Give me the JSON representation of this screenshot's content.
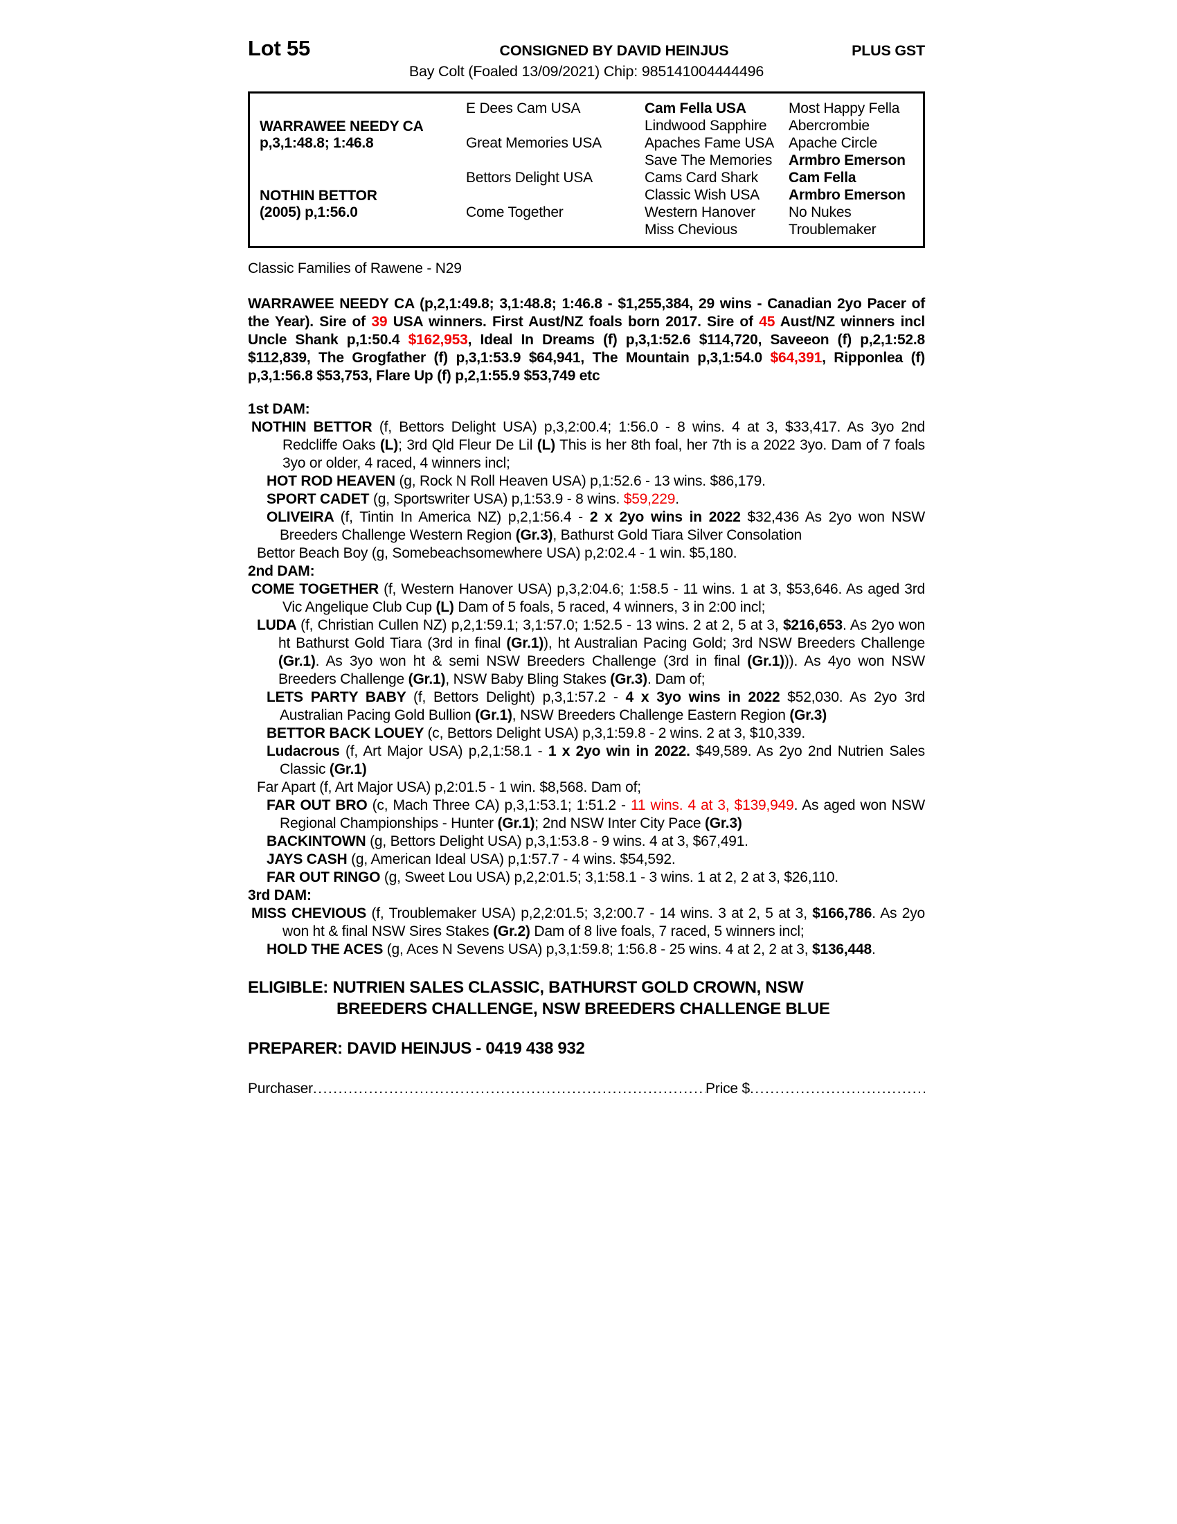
{
  "header": {
    "lot": "Lot 55",
    "consigned": "CONSIGNED BY DAVID HEINJUS",
    "plus_gst": "PLUS GST",
    "subtitle": "Bay Colt (Foaled 13/09/2021) Chip: 985141004444496"
  },
  "pedigree": {
    "parents": [
      {
        "name": "WARRAWEE NEEDY CA",
        "record": "p,3,1:48.8; 1:46.8"
      },
      {
        "name": "NOTHIN BETTOR",
        "record": "(2005) p,1:56.0"
      }
    ],
    "grandparents": [
      "E Dees Cam USA",
      "Great Memories USA",
      "Bettors Delight USA",
      "Come Together"
    ],
    "greatgrandparents": [
      {
        "t": "Cam Fella USA",
        "b": 1
      },
      {
        "t": "Lindwood Sapphire"
      },
      {
        "t": "Apaches Fame USA"
      },
      {
        "t": "Save The Memories"
      },
      {
        "t": "Cams Card Shark"
      },
      {
        "t": "Classic Wish USA"
      },
      {
        "t": "Western Hanover"
      },
      {
        "t": "Miss Chevious"
      }
    ],
    "greatgreatgrandparents": [
      {
        "t": "Most Happy Fella"
      },
      {
        "t": "Abercrombie"
      },
      {
        "t": "Apache Circle"
      },
      {
        "t": "Armbro Emerson",
        "b": 1
      },
      {
        "t": "Cam Fella",
        "b": 1
      },
      {
        "t": "Armbro Emerson",
        "b": 1
      },
      {
        "t": "No Nukes"
      },
      {
        "t": "Troublemaker"
      }
    ]
  },
  "family_line": "Classic Families of Rawene - N29",
  "sire_paragraph": [
    {
      "t": "WARRAWEE NEEDY CA (p,2,1:49.8; 3,1:48.8; 1:46.8 - $1,255,384, 29 wins - Canadian 2yo Pacer of the Year). Sire of ",
      "b": 1
    },
    {
      "t": "39",
      "b": 1,
      "r": 1
    },
    {
      "t": " USA winners. First Aust/NZ foals born 2017. Sire of ",
      "b": 1
    },
    {
      "t": "45",
      "b": 1,
      "r": 1
    },
    {
      "t": " Aust/NZ winners incl Uncle Shank p,1:50.4 ",
      "b": 1
    },
    {
      "t": "$162,953",
      "b": 1,
      "r": 1
    },
    {
      "t": ", Ideal In Dreams (f) p,3,1:52.6 $114,720, Saveeon (f) p,2,1:52.8 $112,839, The Grogfather (f) p,3,1:53.9 $64,941, The Mountain p,3,1:54.0 ",
      "b": 1
    },
    {
      "t": "$64,391",
      "b": 1,
      "r": 1
    },
    {
      "t": ", Ripponlea (f) p,3,1:56.8 $53,753, Flare Up (f) p,2,1:55.9 $53,749 etc",
      "b": 1
    }
  ],
  "dams": [
    {
      "level": "h",
      "segs": [
        {
          "t": "1st DAM:",
          "b": 1
        }
      ]
    },
    {
      "level": "l1",
      "segs": [
        {
          "t": "NOTHIN BETTOR ",
          "b": 1
        },
        {
          "t": "(f, Bettors Delight USA) p,3,2:00.4; 1:56.0 - 8 wins. 4 at 3, $33,417. As 3yo 2nd Redcliffe Oaks "
        },
        {
          "t": "(L)",
          "b": 1
        },
        {
          "t": "; 3rd Qld Fleur De Lil "
        },
        {
          "t": "(L)",
          "b": 1
        },
        {
          "t": " This is her 8th foal, her 7th is a 2022 3yo. Dam of 7 foals 3yo or older, 4 raced, 4 winners incl;"
        }
      ]
    },
    {
      "level": "l3",
      "segs": [
        {
          "t": "HOT ROD HEAVEN ",
          "b": 1
        },
        {
          "t": "(g, Rock N Roll Heaven USA) p,1:52.6 - 13 wins. $86,179."
        }
      ]
    },
    {
      "level": "l3",
      "segs": [
        {
          "t": "SPORT CADET ",
          "b": 1
        },
        {
          "t": "(g, Sportswriter USA) p,1:53.9 - 8 wins. "
        },
        {
          "t": "$59,229",
          "r": 1
        },
        {
          "t": "."
        }
      ]
    },
    {
      "level": "l3",
      "segs": [
        {
          "t": "OLIVEIRA ",
          "b": 1
        },
        {
          "t": "(f, Tintin In America NZ) p,2,1:56.4 - "
        },
        {
          "t": "2 x 2yo wins in 2022",
          "b": 1
        },
        {
          "t": " $32,436 As 2yo won NSW Breeders Challenge Western Region "
        },
        {
          "t": "(Gr.3)",
          "b": 1
        },
        {
          "t": ", Bathurst Gold Tiara Silver Consolation"
        }
      ]
    },
    {
      "level": "l2",
      "segs": [
        {
          "t": "Bettor Beach Boy (g, Somebeachsomewhere USA) p,2:02.4 - 1 win. $5,180."
        }
      ]
    },
    {
      "level": "h",
      "segs": [
        {
          "t": "2nd DAM:",
          "b": 1
        }
      ]
    },
    {
      "level": "l1",
      "segs": [
        {
          "t": "COME TOGETHER ",
          "b": 1
        },
        {
          "t": "(f, Western Hanover USA) p,3,2:04.6; 1:58.5 - 11 wins. 1 at 3, $53,646. As aged 3rd Vic Angelique Club Cup "
        },
        {
          "t": "(L)",
          "b": 1
        },
        {
          "t": " Dam of 5 foals, 5 raced, 4 winners, 3 in 2:00 incl;"
        }
      ]
    },
    {
      "level": "l2",
      "segs": [
        {
          "t": "LUDA ",
          "b": 1
        },
        {
          "t": "(f, Christian Cullen NZ) p,2,1:59.1; 3,1:57.0; 1:52.5 - 13 wins. 2 at 2, 5 at 3, "
        },
        {
          "t": "$216,653",
          "b": 1
        },
        {
          "t": ". As 2yo won ht Bathurst Gold Tiara (3rd in final "
        },
        {
          "t": "(Gr.1)",
          "b": 1
        },
        {
          "t": "), ht Australian Pacing Gold; 3rd NSW Breeders Challenge "
        },
        {
          "t": "(Gr.1)",
          "b": 1
        },
        {
          "t": ". As 3yo won ht & semi NSW Breeders Challenge (3rd in final "
        },
        {
          "t": "(Gr.1)",
          "b": 1
        },
        {
          "t": ")). As 4yo won NSW Breeders Challenge "
        },
        {
          "t": "(Gr.1)",
          "b": 1
        },
        {
          "t": ", NSW Baby Bling Stakes "
        },
        {
          "t": "(Gr.3)",
          "b": 1
        },
        {
          "t": ". Dam of;"
        }
      ]
    },
    {
      "level": "l3",
      "segs": [
        {
          "t": "LETS PARTY BABY ",
          "b": 1
        },
        {
          "t": "(f, Bettors Delight) p,3,1:57.2 - "
        },
        {
          "t": "4 x 3yo wins in 2022",
          "b": 1
        },
        {
          "t": " $52,030. As 2yo 3rd Australian Pacing Gold Bullion "
        },
        {
          "t": "(Gr.1)",
          "b": 1
        },
        {
          "t": ", NSW Breeders Challenge Eastern Region "
        },
        {
          "t": "(Gr.3)",
          "b": 1
        }
      ]
    },
    {
      "level": "l3",
      "segs": [
        {
          "t": "BETTOR BACK LOUEY ",
          "b": 1
        },
        {
          "t": "(c, Bettors Delight USA) p,3,1:59.8 - 2 wins. 2 at 3, $10,339."
        }
      ]
    },
    {
      "level": "l3",
      "segs": [
        {
          "t": "Ludacrous ",
          "b": 1
        },
        {
          "t": "(f, Art Major USA) p,2,1:58.1 - "
        },
        {
          "t": "1 x 2yo win in 2022.",
          "b": 1
        },
        {
          "t": " $49,589. As 2yo 2nd Nutrien Sales Classic "
        },
        {
          "t": "(Gr.1)",
          "b": 1
        }
      ]
    },
    {
      "level": "l2",
      "segs": [
        {
          "t": "Far Apart (f, Art Major USA) p,2:01.5 - 1 win. $8,568. Dam of;"
        }
      ]
    },
    {
      "level": "l3",
      "segs": [
        {
          "t": "FAR OUT BRO ",
          "b": 1
        },
        {
          "t": "(c, Mach Three CA) p,3,1:53.1; 1:51.2 - "
        },
        {
          "t": "11 wins. 4 at 3, $139,949",
          "r": 1
        },
        {
          "t": ". As aged won NSW Regional Championships - Hunter "
        },
        {
          "t": "(Gr.1)",
          "b": 1
        },
        {
          "t": "; 2nd NSW Inter City Pace "
        },
        {
          "t": "(Gr.3)",
          "b": 1
        }
      ]
    },
    {
      "level": "l3",
      "segs": [
        {
          "t": "BACKINTOWN ",
          "b": 1
        },
        {
          "t": "(g, Bettors Delight USA) p,3,1:53.8 - 9 wins. 4 at 3, $67,491."
        }
      ]
    },
    {
      "level": "l3",
      "segs": [
        {
          "t": "JAYS CASH ",
          "b": 1
        },
        {
          "t": "(g, American Ideal USA) p,1:57.7 - 4 wins. $54,592."
        }
      ]
    },
    {
      "level": "l3",
      "segs": [
        {
          "t": "FAR OUT RINGO ",
          "b": 1
        },
        {
          "t": "(g, Sweet Lou USA) p,2,2:01.5; 3,1:58.1 - 3 wins. 1 at 2, 2 at 3, $26,110."
        }
      ]
    },
    {
      "level": "h",
      "segs": [
        {
          "t": "3rd DAM:",
          "b": 1
        }
      ]
    },
    {
      "level": "l1",
      "segs": [
        {
          "t": "MISS CHEVIOUS ",
          "b": 1
        },
        {
          "t": "(f, Troublemaker USA) p,2,2:01.5; 3,2:00.7 - 14 wins. 3 at 2, 5 at 3, "
        },
        {
          "t": "$166,786",
          "b": 1
        },
        {
          "t": ". As 2yo won ht & final NSW Sires Stakes "
        },
        {
          "t": "(Gr.2)",
          "b": 1
        },
        {
          "t": " Dam of 8 live foals, 7 raced, 5 winners incl;"
        }
      ]
    },
    {
      "level": "l3",
      "segs": [
        {
          "t": "HOLD THE ACES ",
          "b": 1
        },
        {
          "t": "(g, Aces N Sevens USA) p,3,1:59.8; 1:56.8 - 25 wins. 4 at 2, 2 at 3, "
        },
        {
          "t": "$136,448",
          "b": 1
        },
        {
          "t": "."
        }
      ]
    }
  ],
  "eligible": {
    "line1": "ELIGIBLE: NUTRIEN SALES CLASSIC, BATHURST GOLD CROWN, NSW",
    "line2": "BREEDERS CHALLENGE, NSW BREEDERS CHALLENGE BLUE"
  },
  "preparer": "PREPARER: DAVID HEINJUS - 0419 438 932",
  "purchaser": {
    "label": "Purchaser",
    "dots_left": "........................................................................................................................................................",
    "price_label": "Price $",
    "dots_right": "............................................................................"
  },
  "colors": {
    "highlight_red": "#f00000",
    "text": "#000000"
  }
}
